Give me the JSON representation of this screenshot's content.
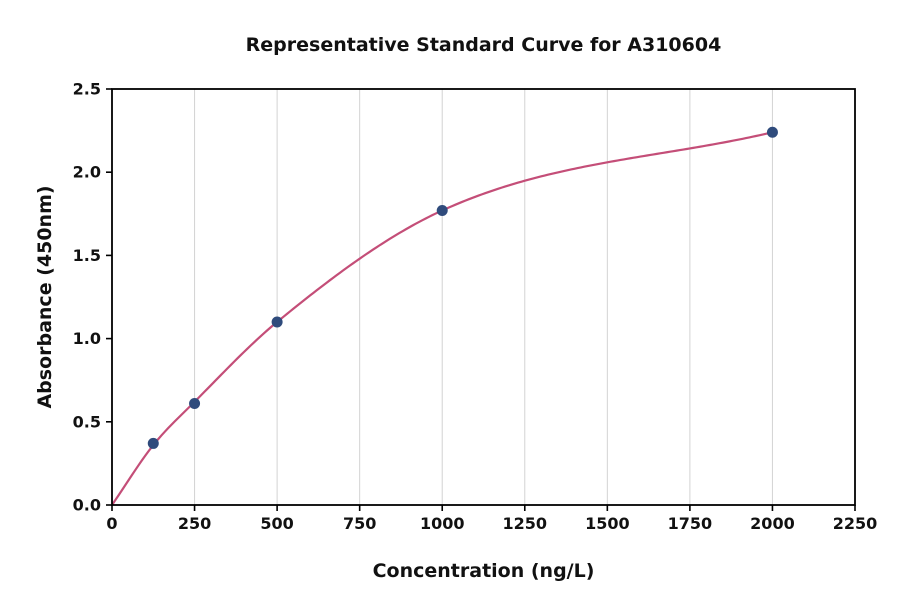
{
  "chart_data": {
    "type": "scatter",
    "title": "Representative Standard Curve for A310604",
    "xlabel": "Concentration (ng/L)",
    "ylabel": "Absorbance (450nm)",
    "xlim": [
      0,
      2250
    ],
    "ylim": [
      0,
      2.5
    ],
    "x_ticks": [
      0,
      250,
      500,
      750,
      1000,
      1250,
      1500,
      1750,
      2000,
      2250
    ],
    "x_tick_labels": [
      "0",
      "250",
      "500",
      "750",
      "1000",
      "1250",
      "1500",
      "1750",
      "2000",
      "2250"
    ],
    "y_ticks": [
      0.0,
      0.5,
      1.0,
      1.5,
      2.0,
      2.5
    ],
    "y_tick_labels": [
      "0.0",
      "0.5",
      "1.0",
      "1.5",
      "2.0",
      "2.5"
    ],
    "grid": {
      "vertical": true,
      "horizontal": false
    },
    "legend": "none",
    "series": [
      {
        "name": "standard-points",
        "kind": "scatter",
        "x": [
          125,
          250,
          500,
          1000,
          2000
        ],
        "y": [
          0.37,
          0.61,
          1.1,
          1.77,
          2.24
        ]
      },
      {
        "name": "fitted-curve",
        "kind": "line",
        "x": [
          0,
          125,
          250,
          500,
          1000,
          2000
        ],
        "y": [
          0.0,
          0.36,
          0.62,
          1.1,
          1.77,
          2.24
        ]
      }
    ],
    "colors": {
      "point": "#2f4b7c",
      "curve": "#c44e78",
      "grid": "#d3d3d3",
      "spine": "#000000",
      "text": "#111111"
    }
  }
}
